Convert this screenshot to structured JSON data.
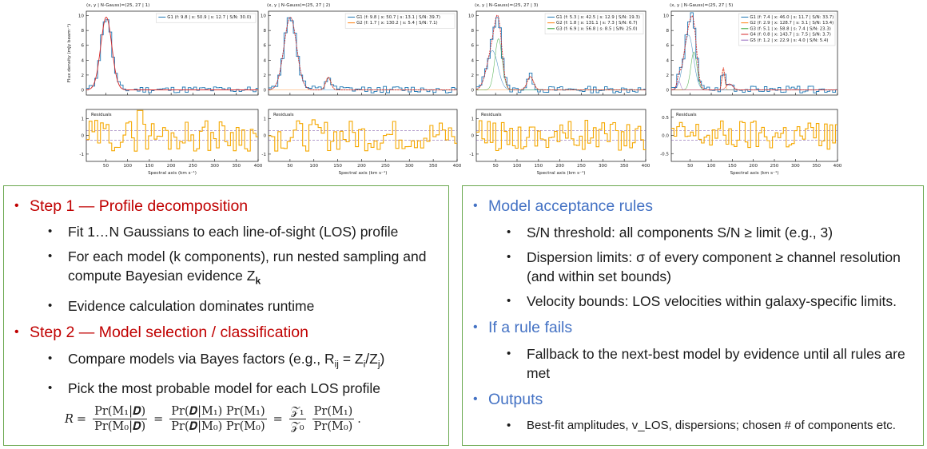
{
  "panels": [
    {
      "title": "(x, y | N-Gauss)=(25, 27 | 1)",
      "ylabel": "Flux density (mJy beam⁻¹)",
      "legend": [
        {
          "name": "G1",
          "text": "G1  (f: 9.8 | x: 50.9 | s: 12.7 | S/N: 30.0)",
          "color": "#1f77b4"
        }
      ]
    },
    {
      "title": "(x, y | N-Gauss)=(25, 27 | 2)",
      "ylabel": "",
      "legend": [
        {
          "name": "G1",
          "text": "G1  (f: 9.8 | x: 50.7 | s: 13.1 | S/N: 39.7)",
          "color": "#1f77b4"
        },
        {
          "name": "G2",
          "text": "G2  (f: 1.7 | x: 130.2 | s: 5.4 | S/N: 7.1)",
          "color": "#ff7f0e"
        }
      ]
    },
    {
      "title": "(x, y | N-Gauss)=(25, 27 | 3)",
      "ylabel": "",
      "legend": [
        {
          "name": "G1",
          "text": "G1  (f: 5.3 | x: 42.5 | s: 12.9 | S/N: 19.3)",
          "color": "#1f77b4"
        },
        {
          "name": "G2",
          "text": "G2  (f: 1.8 | x: 131.1 | s: 7.3 | S/N: 6.7)",
          "color": "#ff7f0e"
        },
        {
          "name": "G3",
          "text": "G3  (f: 6.9 | x: 56.8 | s: 8.5 | S/N: 25.0)",
          "color": "#2ca02c"
        }
      ]
    },
    {
      "title": "(x, y | N-Gauss)=(25, 27 | 5)",
      "ylabel": "",
      "legend": [
        {
          "name": "G1",
          "text": "G1  (f: 7.4 | x: 46.0 | s: 11.7 | S/N: 33.7)",
          "color": "#1f77b4"
        },
        {
          "name": "G2",
          "text": "G2  (f: 2.9 | x: 128.7 | s: 3.1 | S/N: 13.4)",
          "color": "#ff7f0e"
        },
        {
          "name": "G3",
          "text": "G3  (f: 5.1 | x: 58.8 | s: 7.4 | S/N: 23.3)",
          "color": "#2ca02c"
        },
        {
          "name": "G4",
          "text": "G4  (f: 0.8 | x: 143.7 | s: 7.5 | S/N: 3.7)",
          "color": "#d62728"
        },
        {
          "name": "G5",
          "text": "G5  (f: 1.2 | x: 22.9 | s: 4.0 | S/N: 5.4)",
          "color": "#9467bd"
        }
      ]
    }
  ],
  "axis": {
    "xlabel": "Spectral axis (km s⁻¹)",
    "residuals_label": "Residuals",
    "xticks": [
      "50",
      "100",
      "150",
      "200",
      "250",
      "300",
      "350",
      "400"
    ],
    "yticks_top": [
      "10",
      "8",
      "6",
      "4",
      "2",
      "0"
    ],
    "yticks_res_wide": [
      "1",
      "0",
      "-1"
    ],
    "yticks_res_narrow": [
      "0.5",
      "0.0",
      "-0.5"
    ]
  },
  "colors": {
    "spectrum": "#1f77b4",
    "model": "#d62728",
    "residual": "#f5a800",
    "dashed": "#6a3d9a",
    "box_border": "#6aa84f",
    "heading_red": "#c00000",
    "heading_blue": "#4472c4"
  },
  "left": {
    "step1_heading": "Step 1 — Profile decomposition",
    "step1_b1": "Fit 1…N Gaussians to each line-of-sight (LOS) profile",
    "step1_b2_prefix": "For each model (k components), run nested sampling and compute Bayesian evidence Z",
    "step1_b2_sub": "k",
    "step1_b3": "Evidence calculation dominates runtime",
    "step2_heading": "Step 2 — Model selection / classification",
    "step2_b1_prefix": "Compare models via Bayes factors (e.g., R",
    "step2_b1_sub1": "ij",
    "step2_b1_mid": " = Z",
    "step2_b1_sub2": "i",
    "step2_b1_mid2": "/Z",
    "step2_b1_sub3": "j",
    "step2_b1_suffix": ")",
    "step2_b2": "Pick the most probable model for each LOS profile",
    "formula": {
      "lhs": "R",
      "f1_num": "Pr(M₁|𝑫)",
      "f1_den": "Pr(M₀|𝑫)",
      "f2_num": "Pr(𝑫|M₁) Pr(M₁)",
      "f2_den": "Pr(𝑫|M₀) Pr(M₀)",
      "f3_num": "𝒵₁",
      "f3_den": "𝒵₀",
      "f4_num": "Pr(M₁)",
      "f4_den": "Pr(M₀)"
    }
  },
  "right": {
    "h1": "Model acceptance rules",
    "r1": "S/N threshold: all components S/N ≥ limit (e.g., 3)",
    "r2": "Dispersion limits: σ of every component ≥ channel resolution (and within set bounds)",
    "r3": "Velocity bounds: LOS velocities within galaxy-specific limits.",
    "h2": "If a rule fails",
    "f1": "Fallback to the next-best model by evidence until all rules are met",
    "h3": "Outputs",
    "o1": "Best-fit amplitudes, v_LOS, dispersions; chosen # of components etc."
  }
}
